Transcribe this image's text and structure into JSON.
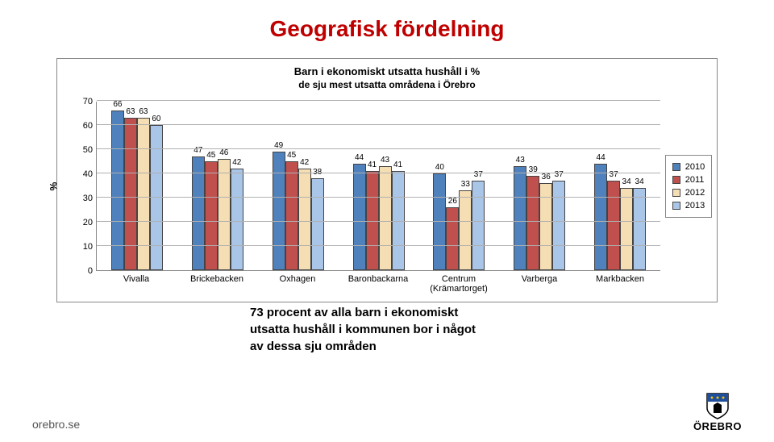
{
  "title": "Geografisk fördelning",
  "chart": {
    "type": "bar",
    "subtitle1": "Barn i ekonomiskt utsatta hushåll i %",
    "subtitle2": "de sju mest utsatta områdena i Örebro",
    "ylabel": "%",
    "ylim_max": 70,
    "ytick_step": 10,
    "yticks": [
      0,
      10,
      20,
      30,
      40,
      50,
      60,
      70
    ],
    "gridline_color": "#b0b0b0",
    "categories": [
      "Vivalla",
      "Brickebacken",
      "Oxhagen",
      "Baronbackarna",
      "Centrum (Krämartorget)",
      "Varberga",
      "Markbacken"
    ],
    "series": [
      {
        "name": "2010",
        "color": "#4f81bd",
        "values": [
          66,
          47,
          49,
          44,
          40,
          43,
          44
        ]
      },
      {
        "name": "2011",
        "color": "#c0504d",
        "values": [
          63,
          45,
          45,
          41,
          26,
          39,
          37
        ]
      },
      {
        "name": "2012",
        "color": "#f5deb3",
        "values": [
          63,
          46,
          42,
          43,
          33,
          36,
          34
        ]
      },
      {
        "name": "2013",
        "color": "#a9c5e8",
        "values": [
          60,
          42,
          38,
          41,
          37,
          37,
          34
        ]
      }
    ],
    "bar_border_color": "#444444",
    "legend_border_color": "#888888"
  },
  "caption_line1": "73 procent av alla barn i ekonomiskt",
  "caption_line2": "utsatta hushåll i kommunen bor i något",
  "caption_line3": "av dessa sju områden",
  "footer_text": "orebro.se",
  "logo_text": "ÖREBRO"
}
